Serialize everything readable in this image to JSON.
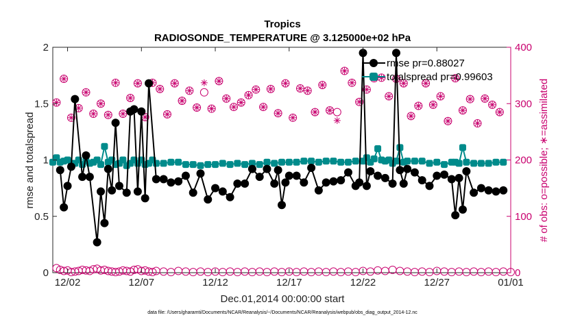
{
  "chart_data": {
    "type": "line",
    "title": "Tropics",
    "subtitle": "RADIOSONDE_TEMPERATURE @ 3.125000e+02 hPa",
    "xlabel": "Dec.01,2014 00:00:00 start",
    "ylabel_left": "rmse and totalspread",
    "ylabel_right": "# of obs: o=possible; ∗=assimilated",
    "footnote": "data file: /Users/gharamti/Documents/NCAR/Reanalysis/~/Documents/NCAR/Reanalysis/webpub/obs_diag_output_2014-12.nc",
    "xlim": [
      1,
      32
    ],
    "ylim_left": [
      0,
      2
    ],
    "ylim_right": [
      0,
      400
    ],
    "x_ticks": [
      2,
      7,
      12,
      17,
      22,
      27,
      32
    ],
    "x_tick_labels": [
      "12/02",
      "12/07",
      "12/12",
      "12/17",
      "12/22",
      "12/27",
      "01/01"
    ],
    "y_ticks_left": [
      0,
      0.5,
      1,
      1.5,
      2
    ],
    "y_tick_labels_left": [
      "0",
      "0.5",
      "1",
      "1.5",
      "2"
    ],
    "y_ticks_right": [
      0,
      100,
      200,
      300,
      400
    ],
    "y_tick_labels_right": [
      "0",
      "100",
      "200",
      "300",
      "400"
    ],
    "colors": {
      "rmse": "#000000",
      "spread": "#008b8b",
      "obs": "#c8006e",
      "axis": "#262626",
      "grid": "#d9d9d9"
    },
    "series": [
      {
        "name": "rmse",
        "legend": "rmse pr=0.88027",
        "axis": "left",
        "x": [
          1.5,
          1.75,
          2,
          2.25,
          2.5,
          3,
          3.25,
          3.5,
          4,
          4.25,
          4.5,
          4.75,
          5,
          5.25,
          5.5,
          6,
          6.25,
          6.5,
          6.75,
          7,
          7.25,
          7.5,
          8,
          8.5,
          9,
          9.5,
          10,
          10.5,
          11,
          11.5,
          12,
          12.5,
          13,
          13.5,
          14,
          14.5,
          15,
          15.5,
          16,
          16.25,
          16.5,
          16.75,
          17,
          17.5,
          18,
          18.5,
          19,
          19.5,
          20,
          20.5,
          21,
          21.5,
          21.75,
          22,
          22.25,
          22.5,
          23,
          23.5,
          24,
          24.25,
          24.5,
          24.75,
          25,
          25.5,
          26,
          26.5,
          27,
          27.5,
          28,
          28.25,
          28.5,
          28.75,
          29,
          29.5,
          30,
          30.5,
          31,
          31.5
        ],
        "values": [
          0.91,
          0.58,
          0.77,
          0.94,
          1.54,
          0.85,
          1.04,
          0.85,
          0.27,
          0.72,
          0.44,
          0.92,
          0.73,
          1.33,
          0.77,
          0.71,
          1.43,
          1.45,
          0.72,
          1.43,
          0.66,
          1.68,
          0.83,
          0.83,
          0.8,
          0.81,
          0.86,
          0.71,
          0.88,
          0.65,
          0.75,
          0.72,
          0.67,
          0.79,
          0.79,
          0.92,
          0.85,
          0.92,
          0.79,
          0.91,
          0.6,
          0.8,
          0.86,
          0.86,
          0.8,
          0.93,
          0.73,
          0.8,
          0.81,
          0.82,
          0.89,
          0.77,
          0.8,
          1.95,
          0.77,
          0.9,
          0.86,
          0.84,
          0.79,
          1.95,
          0.91,
          0.79,
          0.92,
          0.89,
          0.82,
          0.77,
          0.86,
          0.87,
          0.83,
          0.51,
          0.84,
          0.56,
          0.9,
          0.71,
          0.75,
          0.73,
          0.72,
          0.73
        ]
      },
      {
        "name": "totalspread",
        "legend": "totalspread pr=0.99603",
        "axis": "left",
        "x": [
          1,
          1.25,
          1.5,
          1.75,
          2,
          2.25,
          2.5,
          2.75,
          3,
          3.25,
          3.5,
          3.75,
          4,
          4.25,
          4.5,
          4.75,
          5,
          5.25,
          5.5,
          5.75,
          6,
          6.25,
          6.5,
          6.75,
          7,
          7.25,
          7.5,
          7.75,
          8,
          8.5,
          9,
          9.5,
          10,
          10.5,
          11,
          11.5,
          12,
          12.5,
          13,
          13.5,
          14,
          14.5,
          15,
          15.5,
          16,
          16.5,
          17,
          17.5,
          18,
          18.5,
          19,
          19.5,
          20,
          20.5,
          21,
          21.5,
          22,
          22.25,
          22.5,
          22.75,
          23,
          23.25,
          23.5,
          23.75,
          24,
          24.25,
          24.5,
          24.75,
          25,
          25.5,
          26,
          26.5,
          27,
          27.5,
          28,
          28.25,
          28.5,
          28.75,
          29,
          29.5,
          30,
          30.5,
          31,
          31.5
        ],
        "values": [
          0.98,
          1.02,
          0.98,
          0.99,
          1.0,
          0.97,
          0.97,
          1.0,
          0.96,
          0.99,
          0.97,
          0.98,
          1.0,
          0.96,
          1.12,
          0.98,
          1.0,
          0.96,
          0.97,
          1.0,
          0.95,
          0.97,
          1.0,
          0.97,
          1.0,
          0.96,
          0.97,
          1.0,
          0.97,
          0.97,
          0.98,
          0.98,
          0.96,
          0.96,
          0.95,
          0.96,
          0.96,
          0.97,
          0.96,
          0.97,
          0.96,
          0.97,
          0.96,
          0.98,
          0.97,
          0.98,
          0.98,
          0.98,
          0.99,
          0.99,
          0.98,
          0.99,
          0.99,
          0.98,
          0.98,
          0.99,
          0.99,
          1.02,
          0.98,
          1.01,
          1.1,
          1.0,
          0.99,
          1.0,
          0.97,
          0.99,
          1.11,
          0.98,
          0.99,
          0.99,
          0.99,
          0.97,
          0.98,
          0.96,
          0.98,
          0.98,
          0.97,
          1.11,
          0.98,
          0.97,
          0.97,
          0.97,
          0.98,
          0.98
        ]
      },
      {
        "name": "possible",
        "legend": "",
        "axis": "right",
        "marker": "circle",
        "x": [
          1.25,
          1.75,
          2.25,
          2.75,
          3.25,
          3.75,
          4.25,
          4.75,
          5.25,
          5.75,
          6.25,
          6.75,
          7.25,
          7.75,
          8.25,
          8.75,
          9.25,
          9.75,
          10.25,
          10.75,
          11.25,
          11.75,
          12.25,
          12.75,
          13.25,
          13.75,
          14.25,
          14.75,
          15.25,
          15.75,
          16.25,
          16.75,
          17.25,
          17.75,
          18.25,
          18.75,
          19.25,
          19.75,
          20.25,
          20.75,
          21.25,
          21.75,
          22.25,
          22.75,
          23.25,
          23.75,
          24.25,
          24.75,
          25.25,
          25.75,
          26.25,
          26.75,
          27.25,
          27.75,
          28.25,
          28.75,
          29.25,
          29.75,
          30.25,
          30.75,
          31.25
        ],
        "values": [
          302,
          344,
          275,
          292,
          320,
          282,
          300,
          280,
          337,
          282,
          310,
          336,
          276,
          337,
          326,
          281,
          336,
          305,
          323,
          293,
          320,
          291,
          340,
          309,
          294,
          302,
          315,
          325,
          294,
          326,
          283,
          336,
          275,
          327,
          323,
          285,
          333,
          288,
          285,
          358,
          337,
          303,
          325,
          345,
          346,
          313,
          344,
          336,
          278,
          296,
          336,
          298,
          313,
          269,
          345,
          288,
          308,
          265,
          309,
          298,
          285
        ]
      },
      {
        "name": "assimilated",
        "legend": "",
        "axis": "right",
        "marker": "star",
        "x": [
          1.25,
          1.75,
          2.25,
          2.75,
          3.25,
          3.75,
          4.25,
          4.75,
          5.25,
          5.75,
          6.25,
          6.75,
          7.25,
          7.75,
          8.25,
          8.75,
          9.25,
          9.75,
          10.25,
          10.75,
          11.25,
          11.75,
          12.25,
          12.75,
          13.25,
          13.75,
          14.25,
          14.75,
          15.25,
          15.75,
          16.25,
          16.75,
          17.25,
          17.75,
          18.25,
          18.75,
          19.25,
          19.75,
          20.25,
          20.75,
          21.25,
          21.75,
          22.25,
          22.75,
          23.25,
          23.75,
          24.25,
          24.75,
          25.25,
          25.75,
          26.25,
          26.75,
          27.25,
          27.75,
          28.25,
          28.75,
          29.25,
          29.75,
          30.25,
          30.75,
          31.25
        ],
        "values": [
          302,
          344,
          275,
          292,
          320,
          282,
          300,
          280,
          337,
          282,
          310,
          336,
          276,
          337,
          326,
          281,
          336,
          305,
          323,
          293,
          337,
          291,
          340,
          309,
          294,
          302,
          315,
          325,
          294,
          326,
          283,
          336,
          275,
          327,
          323,
          285,
          333,
          288,
          270,
          358,
          337,
          303,
          325,
          345,
          346,
          313,
          344,
          336,
          278,
          296,
          336,
          298,
          313,
          269,
          345,
          288,
          308,
          265,
          309,
          298,
          285
        ]
      },
      {
        "name": "rejected_possible",
        "legend": "",
        "axis": "right",
        "marker": "circle",
        "x": [
          1.25,
          1.5,
          1.75,
          2,
          2.25,
          2.5,
          2.75,
          3,
          3.25,
          3.5,
          3.75,
          4,
          4.25,
          4.5,
          4.75,
          5,
          5.25,
          5.5,
          5.75,
          6,
          6.25,
          6.5,
          6.75,
          7,
          7.25,
          7.5,
          7.75,
          8,
          8.5,
          9,
          9.5,
          10,
          10.5,
          11,
          11.5,
          12,
          12.5,
          13,
          13.5,
          14,
          14.5,
          15,
          15.5,
          16,
          16.5,
          17,
          17.5,
          18,
          18.5,
          19,
          19.5,
          20,
          20.5,
          21,
          21.5,
          22,
          22.5,
          23,
          23.5,
          24,
          24.5,
          25,
          25.5,
          26,
          26.5,
          27,
          27.5,
          28,
          28.5,
          29,
          29.5,
          30,
          30.5,
          31,
          31.5,
          32
        ],
        "values": [
          8,
          5,
          3,
          4,
          1,
          2,
          3,
          5,
          4,
          3,
          6,
          7,
          4,
          5,
          3,
          2,
          1,
          2,
          4,
          3,
          2,
          5,
          6,
          3,
          4,
          2,
          1,
          3,
          2,
          1,
          3,
          2,
          1,
          2,
          1,
          2,
          1,
          2,
          1,
          2,
          1,
          2,
          1,
          2,
          1,
          2,
          1,
          2,
          1,
          2,
          1,
          2,
          1,
          2,
          1,
          3,
          2,
          4,
          3,
          5,
          3,
          2,
          1,
          2,
          1,
          3,
          2,
          1,
          2,
          1,
          2,
          1,
          2,
          1,
          2,
          1
        ]
      }
    ]
  }
}
